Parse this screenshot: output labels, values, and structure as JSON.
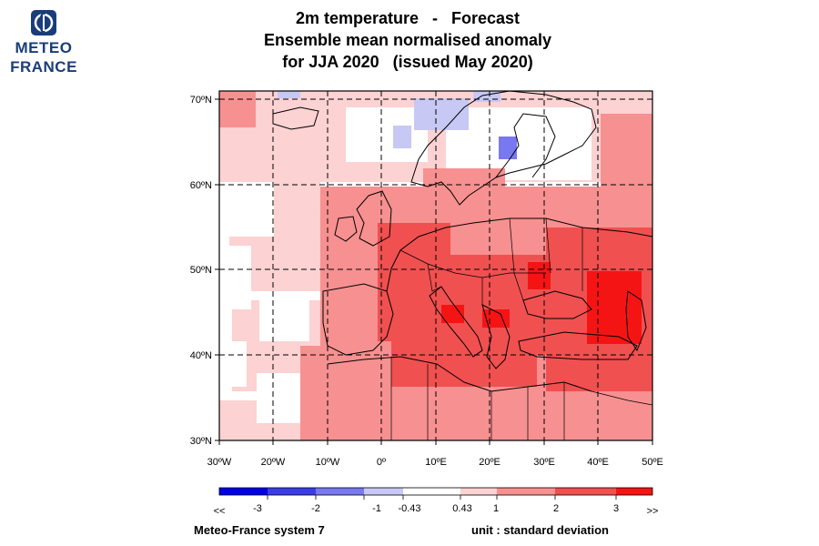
{
  "logo": {
    "line1": "METEO",
    "line2": "FRANCE",
    "color": "#1a3d7a"
  },
  "title": {
    "line1": "2m temperature   -   Forecast",
    "line2": "Ensemble mean normalised anomaly",
    "line3": "for JJA 2020   (issued May 2020)"
  },
  "map": {
    "lon_range": [
      -30,
      50
    ],
    "lat_range": [
      30,
      70
    ],
    "lat_labels": [
      "70ºN",
      "60ºN",
      "50ºN",
      "40ºN",
      "30ºN"
    ],
    "lon_labels": [
      "30ºW",
      "20ºW",
      "10ºW",
      "0º",
      "10ºE",
      "20ºE",
      "30ºE",
      "40ºE",
      "50ºE"
    ],
    "grid_style": "dashed",
    "coastlines": true
  },
  "colorbar": {
    "labels": [
      "<<",
      "-3",
      "-2",
      "-1",
      "-0.43",
      "0.43",
      "1",
      "2",
      "3",
      ">>"
    ],
    "colors": [
      "#0000e6",
      "#3c3ce6",
      "#7878f0",
      "#c8c8f5",
      "#ffffff",
      "#fcd2d2",
      "#f79090",
      "#f05050",
      "#f51414"
    ]
  },
  "footer": {
    "model": "Meteo-France system 7",
    "unit": "unit : standard deviation"
  }
}
